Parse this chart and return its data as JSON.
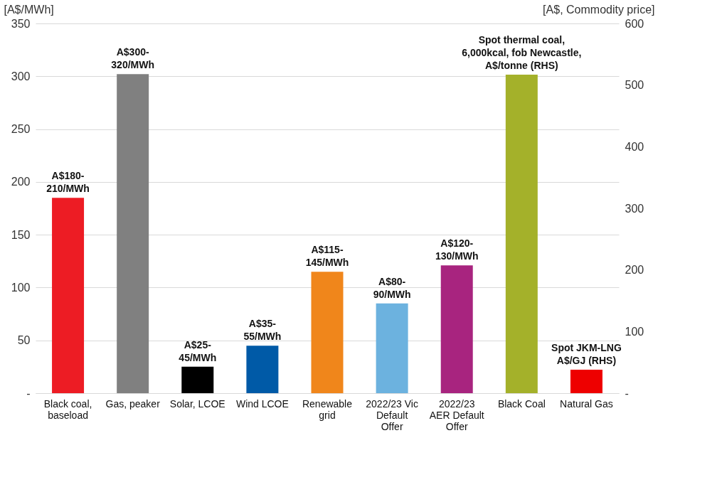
{
  "chart_data": {
    "type": "bar",
    "ylabel": "[A$/MWh]",
    "y2label": "[A$, Commodity price]",
    "categories": [
      "Black coal,\nbaseload",
      "Gas, peaker",
      "Solar, LCOE",
      "Wind LCOE",
      "Renewable\ngrid",
      "2022/23 Vic\nDefault\nOffer",
      "2022/23\nAER Default\nOffer",
      "Black Coal",
      "Natural Gas"
    ],
    "series": [
      {
        "colors": [
          "#ed1c24",
          "#808080",
          "#000000",
          "#005aa7",
          "#f0861b",
          "#6cb2df",
          "#a8247f",
          null,
          null
        ],
        "values": [
          185,
          302,
          25,
          45,
          115,
          85,
          121,
          null,
          null
        ],
        "value_labels": [
          "A$180-\n210/MWh",
          "A$300-\n320/MWh",
          "A$25-\n45/MWh",
          "A$35-\n55/MWh",
          "A$115-\n145/MWh",
          "A$80-\n90/MWh",
          "A$120-\n130/MWh",
          null,
          null
        ]
      },
      {
        "axis": "y2",
        "name": "Spot thermal coal,\n6,000kcal, fob Newcastle,\nA$/tonne (RHS)",
        "color": "#a4b12a",
        "values": [
          null,
          null,
          null,
          null,
          null,
          null,
          null,
          517,
          null
        ]
      },
      {
        "axis": "y2",
        "name": "Spot JKM-LNG\nA$/GJ (RHS)",
        "color": "#ee0000",
        "values": [
          null,
          null,
          null,
          null,
          null,
          null,
          null,
          null,
          38
        ]
      }
    ],
    "ylim": [
      0,
      350
    ],
    "yticks": [
      {
        "value": 0,
        "label": "-"
      },
      50,
      100,
      150,
      200,
      250,
      300,
      350
    ],
    "y2lim": [
      0,
      600
    ],
    "y2ticks": [
      {
        "value": 0,
        "label": "-"
      },
      100,
      200,
      300,
      400,
      500,
      600
    ],
    "grid": "y",
    "legend": false
  }
}
